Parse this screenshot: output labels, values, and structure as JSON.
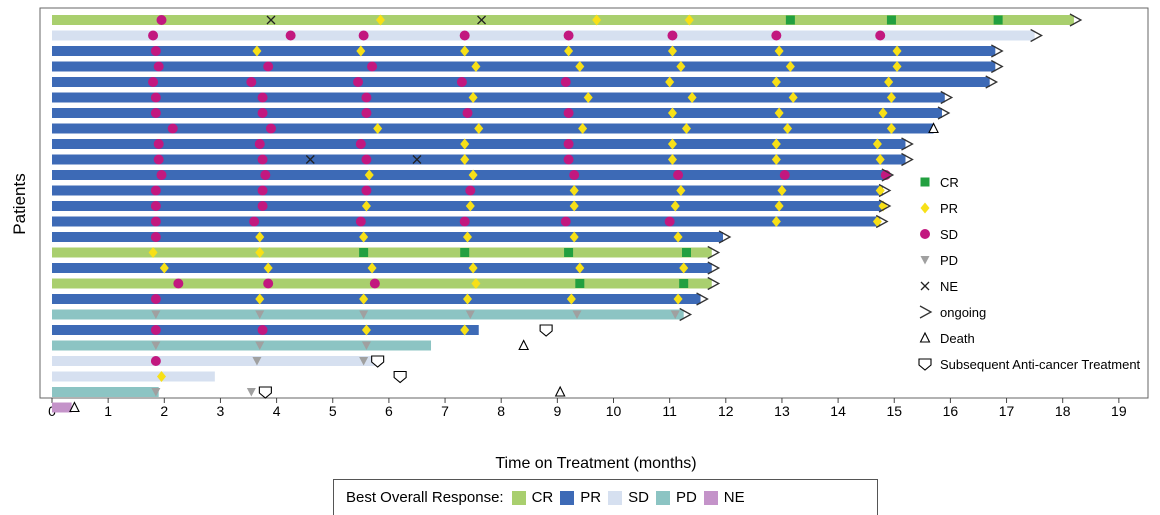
{
  "chart_data": {
    "type": "bar",
    "subtype": "swimmer",
    "ylabel": "Patients",
    "xlabel": "Time on Treatment (months)",
    "xlim": [
      0,
      19.5
    ],
    "xticks": [
      0,
      1,
      2,
      3,
      4,
      5,
      6,
      7,
      8,
      9,
      10,
      11,
      12,
      13,
      14,
      15,
      16,
      17,
      18,
      19
    ],
    "grid": false,
    "colors": {
      "CR": "#a9cf6e",
      "PR": "#3d6ab6",
      "SD": "#d6e0f0",
      "PD": "#8cc4c3",
      "NE": "#c493c9",
      "sd_marker": "#c2187f",
      "pr_marker": "#f7e017",
      "cr_marker": "#22a040",
      "pd_marker": "#a0a0a0"
    },
    "patients": [
      {
        "best": "CR",
        "end": 18.2,
        "ongoing": true,
        "markers": [
          {
            "t": 1.95,
            "type": "SD"
          },
          {
            "t": 3.9,
            "type": "NE"
          },
          {
            "t": 5.85,
            "type": "PR"
          },
          {
            "t": 7.65,
            "type": "NE"
          },
          {
            "t": 9.7,
            "type": "PR"
          },
          {
            "t": 11.35,
            "type": "PR"
          },
          {
            "t": 13.15,
            "type": "CR"
          },
          {
            "t": 14.95,
            "type": "CR"
          },
          {
            "t": 16.85,
            "type": "CR"
          }
        ]
      },
      {
        "best": "SD",
        "end": 17.5,
        "ongoing": true,
        "markers": [
          {
            "t": 1.8,
            "type": "SD"
          },
          {
            "t": 4.25,
            "type": "SD"
          },
          {
            "t": 5.55,
            "type": "SD"
          },
          {
            "t": 7.35,
            "type": "SD"
          },
          {
            "t": 9.2,
            "type": "SD"
          },
          {
            "t": 11.05,
            "type": "SD"
          },
          {
            "t": 12.9,
            "type": "SD"
          },
          {
            "t": 14.75,
            "type": "SD"
          }
        ]
      },
      {
        "best": "PR",
        "end": 16.8,
        "ongoing": true,
        "markers": [
          {
            "t": 1.85,
            "type": "SD"
          },
          {
            "t": 3.65,
            "type": "PR"
          },
          {
            "t": 5.5,
            "type": "PR"
          },
          {
            "t": 7.35,
            "type": "PR"
          },
          {
            "t": 9.2,
            "type": "PR"
          },
          {
            "t": 11.05,
            "type": "PR"
          },
          {
            "t": 12.95,
            "type": "PR"
          },
          {
            "t": 15.05,
            "type": "PR"
          }
        ]
      },
      {
        "best": "PR",
        "end": 16.8,
        "ongoing": true,
        "markers": [
          {
            "t": 1.9,
            "type": "SD"
          },
          {
            "t": 3.85,
            "type": "SD"
          },
          {
            "t": 5.7,
            "type": "SD"
          },
          {
            "t": 7.55,
            "type": "PR"
          },
          {
            "t": 9.4,
            "type": "PR"
          },
          {
            "t": 11.2,
            "type": "PR"
          },
          {
            "t": 13.15,
            "type": "PR"
          },
          {
            "t": 15.05,
            "type": "PR"
          }
        ]
      },
      {
        "best": "PR",
        "end": 16.7,
        "ongoing": true,
        "markers": [
          {
            "t": 1.8,
            "type": "SD"
          },
          {
            "t": 3.55,
            "type": "SD"
          },
          {
            "t": 5.45,
            "type": "SD"
          },
          {
            "t": 7.3,
            "type": "SD"
          },
          {
            "t": 9.15,
            "type": "SD"
          },
          {
            "t": 11.0,
            "type": "PR"
          },
          {
            "t": 12.9,
            "type": "PR"
          },
          {
            "t": 14.9,
            "type": "PR"
          }
        ]
      },
      {
        "best": "PR",
        "end": 15.9,
        "ongoing": true,
        "markers": [
          {
            "t": 1.85,
            "type": "SD"
          },
          {
            "t": 3.75,
            "type": "SD"
          },
          {
            "t": 5.6,
            "type": "SD"
          },
          {
            "t": 7.5,
            "type": "PR"
          },
          {
            "t": 9.55,
            "type": "PR"
          },
          {
            "t": 11.4,
            "type": "PR"
          },
          {
            "t": 13.2,
            "type": "PR"
          },
          {
            "t": 14.95,
            "type": "PR"
          }
        ]
      },
      {
        "best": "PR",
        "end": 15.85,
        "ongoing": true,
        "markers": [
          {
            "t": 1.85,
            "type": "SD"
          },
          {
            "t": 3.75,
            "type": "SD"
          },
          {
            "t": 5.6,
            "type": "SD"
          },
          {
            "t": 7.4,
            "type": "SD"
          },
          {
            "t": 9.2,
            "type": "SD"
          },
          {
            "t": 11.05,
            "type": "PR"
          },
          {
            "t": 12.95,
            "type": "PR"
          },
          {
            "t": 14.8,
            "type": "PR"
          }
        ]
      },
      {
        "best": "PR",
        "end": 15.7,
        "ongoing": false,
        "death": 15.7,
        "markers": [
          {
            "t": 2.15,
            "type": "SD"
          },
          {
            "t": 3.9,
            "type": "SD"
          },
          {
            "t": 5.8,
            "type": "PR"
          },
          {
            "t": 7.6,
            "type": "PR"
          },
          {
            "t": 9.45,
            "type": "PR"
          },
          {
            "t": 11.3,
            "type": "PR"
          },
          {
            "t": 13.1,
            "type": "PR"
          },
          {
            "t": 14.95,
            "type": "PR"
          }
        ]
      },
      {
        "best": "PR",
        "end": 15.2,
        "ongoing": true,
        "markers": [
          {
            "t": 1.9,
            "type": "SD"
          },
          {
            "t": 3.7,
            "type": "SD"
          },
          {
            "t": 5.5,
            "type": "SD"
          },
          {
            "t": 7.35,
            "type": "PR"
          },
          {
            "t": 9.2,
            "type": "SD"
          },
          {
            "t": 11.05,
            "type": "PR"
          },
          {
            "t": 12.9,
            "type": "PR"
          },
          {
            "t": 14.7,
            "type": "PR"
          }
        ]
      },
      {
        "best": "PR",
        "end": 15.2,
        "ongoing": true,
        "markers": [
          {
            "t": 1.9,
            "type": "SD"
          },
          {
            "t": 3.75,
            "type": "SD"
          },
          {
            "t": 4.6,
            "type": "NE"
          },
          {
            "t": 5.6,
            "type": "SD"
          },
          {
            "t": 6.5,
            "type": "NE"
          },
          {
            "t": 7.35,
            "type": "PR"
          },
          {
            "t": 9.2,
            "type": "SD"
          },
          {
            "t": 11.05,
            "type": "PR"
          },
          {
            "t": 12.9,
            "type": "PR"
          },
          {
            "t": 14.75,
            "type": "PR"
          }
        ]
      },
      {
        "best": "PR",
        "end": 14.85,
        "ongoing": true,
        "markers": [
          {
            "t": 1.95,
            "type": "SD"
          },
          {
            "t": 3.8,
            "type": "SD"
          },
          {
            "t": 5.65,
            "type": "PR"
          },
          {
            "t": 7.5,
            "type": "PR"
          },
          {
            "t": 9.3,
            "type": "SD"
          },
          {
            "t": 11.15,
            "type": "SD"
          },
          {
            "t": 13.05,
            "type": "SD"
          },
          {
            "t": 14.85,
            "type": "SD"
          }
        ]
      },
      {
        "best": "PR",
        "end": 14.8,
        "ongoing": true,
        "markers": [
          {
            "t": 1.85,
            "type": "SD"
          },
          {
            "t": 3.75,
            "type": "SD"
          },
          {
            "t": 5.6,
            "type": "SD"
          },
          {
            "t": 7.45,
            "type": "SD"
          },
          {
            "t": 9.3,
            "type": "PR"
          },
          {
            "t": 11.2,
            "type": "PR"
          },
          {
            "t": 13.0,
            "type": "PR"
          },
          {
            "t": 14.75,
            "type": "PR"
          }
        ]
      },
      {
        "best": "PR",
        "end": 14.8,
        "ongoing": true,
        "markers": [
          {
            "t": 1.85,
            "type": "SD"
          },
          {
            "t": 3.75,
            "type": "SD"
          },
          {
            "t": 5.6,
            "type": "PR"
          },
          {
            "t": 7.45,
            "type": "PR"
          },
          {
            "t": 9.3,
            "type": "PR"
          },
          {
            "t": 11.1,
            "type": "PR"
          },
          {
            "t": 12.95,
            "type": "PR"
          },
          {
            "t": 14.8,
            "type": "PR"
          }
        ]
      },
      {
        "best": "PR",
        "end": 14.75,
        "ongoing": true,
        "markers": [
          {
            "t": 1.85,
            "type": "SD"
          },
          {
            "t": 3.6,
            "type": "SD"
          },
          {
            "t": 5.5,
            "type": "SD"
          },
          {
            "t": 7.35,
            "type": "SD"
          },
          {
            "t": 9.15,
            "type": "SD"
          },
          {
            "t": 11.0,
            "type": "SD"
          },
          {
            "t": 12.9,
            "type": "PR"
          },
          {
            "t": 14.7,
            "type": "PR"
          }
        ]
      },
      {
        "best": "PR",
        "end": 11.95,
        "ongoing": true,
        "markers": [
          {
            "t": 1.85,
            "type": "SD"
          },
          {
            "t": 3.7,
            "type": "PR"
          },
          {
            "t": 5.55,
            "type": "PR"
          },
          {
            "t": 7.4,
            "type": "PR"
          },
          {
            "t": 9.3,
            "type": "PR"
          },
          {
            "t": 11.15,
            "type": "PR"
          }
        ]
      },
      {
        "best": "CR",
        "end": 11.75,
        "ongoing": true,
        "markers": [
          {
            "t": 1.8,
            "type": "PR"
          },
          {
            "t": 3.7,
            "type": "PR"
          },
          {
            "t": 5.55,
            "type": "CR"
          },
          {
            "t": 7.35,
            "type": "CR"
          },
          {
            "t": 9.2,
            "type": "CR"
          },
          {
            "t": 11.3,
            "type": "CR"
          }
        ]
      },
      {
        "best": "PR",
        "end": 11.75,
        "ongoing": true,
        "markers": [
          {
            "t": 2.0,
            "type": "PR"
          },
          {
            "t": 3.85,
            "type": "PR"
          },
          {
            "t": 5.7,
            "type": "PR"
          },
          {
            "t": 7.5,
            "type": "PR"
          },
          {
            "t": 9.4,
            "type": "PR"
          },
          {
            "t": 11.25,
            "type": "PR"
          }
        ]
      },
      {
        "best": "CR",
        "end": 11.75,
        "ongoing": true,
        "markers": [
          {
            "t": 2.25,
            "type": "SD"
          },
          {
            "t": 3.85,
            "type": "SD"
          },
          {
            "t": 5.75,
            "type": "SD"
          },
          {
            "t": 7.55,
            "type": "PR"
          },
          {
            "t": 9.4,
            "type": "CR"
          },
          {
            "t": 11.25,
            "type": "CR"
          }
        ]
      },
      {
        "best": "PR",
        "end": 11.55,
        "ongoing": true,
        "markers": [
          {
            "t": 1.85,
            "type": "SD"
          },
          {
            "t": 3.7,
            "type": "PR"
          },
          {
            "t": 5.55,
            "type": "PR"
          },
          {
            "t": 7.4,
            "type": "PR"
          },
          {
            "t": 9.25,
            "type": "PR"
          },
          {
            "t": 11.15,
            "type": "PR"
          }
        ]
      },
      {
        "best": "PD",
        "end": 11.25,
        "ongoing": true,
        "markers": [
          {
            "t": 1.85,
            "type": "PD"
          },
          {
            "t": 3.7,
            "type": "PD"
          },
          {
            "t": 5.55,
            "type": "PD"
          },
          {
            "t": 7.45,
            "type": "PD"
          },
          {
            "t": 9.35,
            "type": "PD"
          },
          {
            "t": 11.1,
            "type": "PD"
          }
        ]
      },
      {
        "best": "PR",
        "end": 7.6,
        "ongoing": false,
        "subsequent_treatment": 8.8,
        "markers": [
          {
            "t": 1.85,
            "type": "SD"
          },
          {
            "t": 3.75,
            "type": "SD"
          },
          {
            "t": 5.6,
            "type": "PR"
          },
          {
            "t": 7.35,
            "type": "PR"
          }
        ]
      },
      {
        "best": "PD",
        "end": 6.75,
        "ongoing": false,
        "death": 8.4,
        "markers": [
          {
            "t": 1.85,
            "type": "PD"
          },
          {
            "t": 3.7,
            "type": "PD"
          },
          {
            "t": 5.6,
            "type": "PD"
          }
        ]
      },
      {
        "best": "SD",
        "end": 5.75,
        "ongoing": false,
        "subsequent_treatment": 5.8,
        "markers": [
          {
            "t": 1.85,
            "type": "SD"
          },
          {
            "t": 3.65,
            "type": "PD"
          },
          {
            "t": 5.55,
            "type": "PD"
          }
        ]
      },
      {
        "best": "SD",
        "end": 2.9,
        "ongoing": false,
        "subsequent_treatment": 6.2,
        "markers": [
          {
            "t": 1.95,
            "type": "PR"
          }
        ]
      },
      {
        "best": "PD",
        "end": 1.9,
        "ongoing": false,
        "subsequent_treatment": 3.8,
        "death": 9.05,
        "markers": [
          {
            "t": 1.85,
            "type": "PD"
          },
          {
            "t": 3.55,
            "type": "PD"
          }
        ]
      },
      {
        "best": "NE",
        "end": 0.35,
        "ongoing": false,
        "death": 0.4,
        "markers": []
      }
    ],
    "legend": {
      "placement": "right",
      "items": [
        {
          "symbol": "square",
          "label": "CR",
          "color": "#22a040"
        },
        {
          "symbol": "diamond",
          "label": "PR",
          "color": "#f7e017"
        },
        {
          "symbol": "circle",
          "label": "SD",
          "color": "#c2187f"
        },
        {
          "symbol": "triangle-down",
          "label": "PD",
          "color": "#a0a0a0"
        },
        {
          "symbol": "cross",
          "label": "NE",
          "color": "#555555"
        },
        {
          "symbol": "chevron",
          "label": "ongoing",
          "color": "#555555"
        },
        {
          "symbol": "triangle-open",
          "label": "Death",
          "color": "#000000"
        },
        {
          "symbol": "shield",
          "label": "Subsequent Anti-cancer Treatment",
          "color": "#000000"
        }
      ]
    },
    "bottom_legend": {
      "placement": "bottom",
      "title": "Best Overall Response:",
      "items": [
        {
          "label": "CR",
          "color": "#a9cf6e"
        },
        {
          "label": "PR",
          "color": "#3d6ab6"
        },
        {
          "label": "SD",
          "color": "#d6e0f0"
        },
        {
          "label": "PD",
          "color": "#8cc4c3"
        },
        {
          "label": "NE",
          "color": "#c493c9"
        }
      ]
    }
  }
}
